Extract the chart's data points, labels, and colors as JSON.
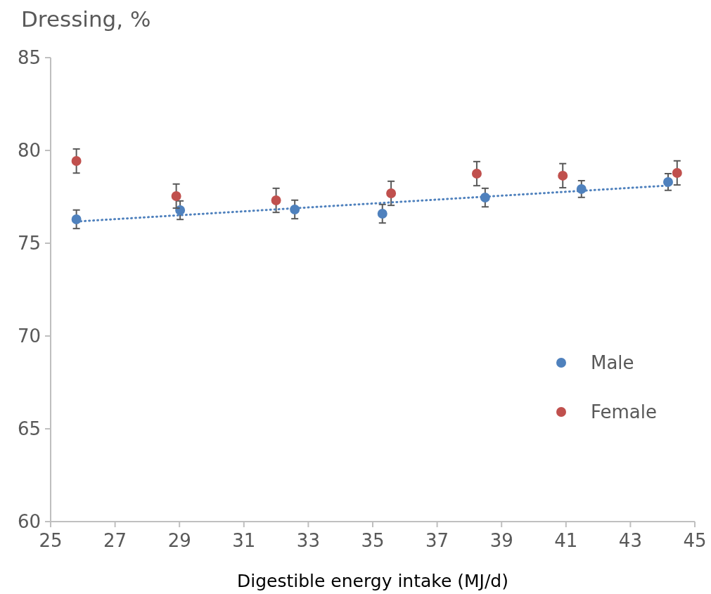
{
  "chart_data": {
    "type": "scatter",
    "ylabel": "Dressing, %",
    "xlabel": "Digestible energy intake (MJ/d)",
    "xlim": [
      25,
      45
    ],
    "xticks": [
      25,
      27,
      29,
      31,
      33,
      35,
      37,
      39,
      41,
      43,
      45
    ],
    "ylim": [
      60,
      85
    ],
    "yticks": [
      60,
      65,
      70,
      75,
      80,
      85
    ],
    "grid": false,
    "legend": "right",
    "marker": "circle",
    "series": [
      {
        "name": "Male",
        "color": "#4f81bd",
        "x": [
          25.8,
          29.02,
          32.58,
          35.3,
          38.49,
          41.48,
          44.17
        ],
        "values": [
          76.29,
          76.78,
          76.82,
          76.59,
          77.46,
          77.92,
          78.3
        ],
        "errors": [
          0.5,
          0.5,
          0.5,
          0.5,
          0.5,
          0.45,
          0.45
        ]
      },
      {
        "name": "Female",
        "color": "#c0504d",
        "x": [
          25.8,
          28.9,
          32.0,
          35.57,
          38.23,
          40.9,
          44.45
        ],
        "values": [
          79.43,
          77.54,
          77.31,
          77.69,
          78.75,
          78.64,
          78.79
        ],
        "errors": [
          0.65,
          0.65,
          0.65,
          0.65,
          0.65,
          0.65,
          0.65
        ]
      },
      {
        "type": "line",
        "color": "#4f81bd",
        "line_style": "dotted",
        "marker": "none",
        "x": [
          25.8,
          44.2
        ],
        "values": [
          76.17,
          78.11
        ]
      }
    ]
  }
}
